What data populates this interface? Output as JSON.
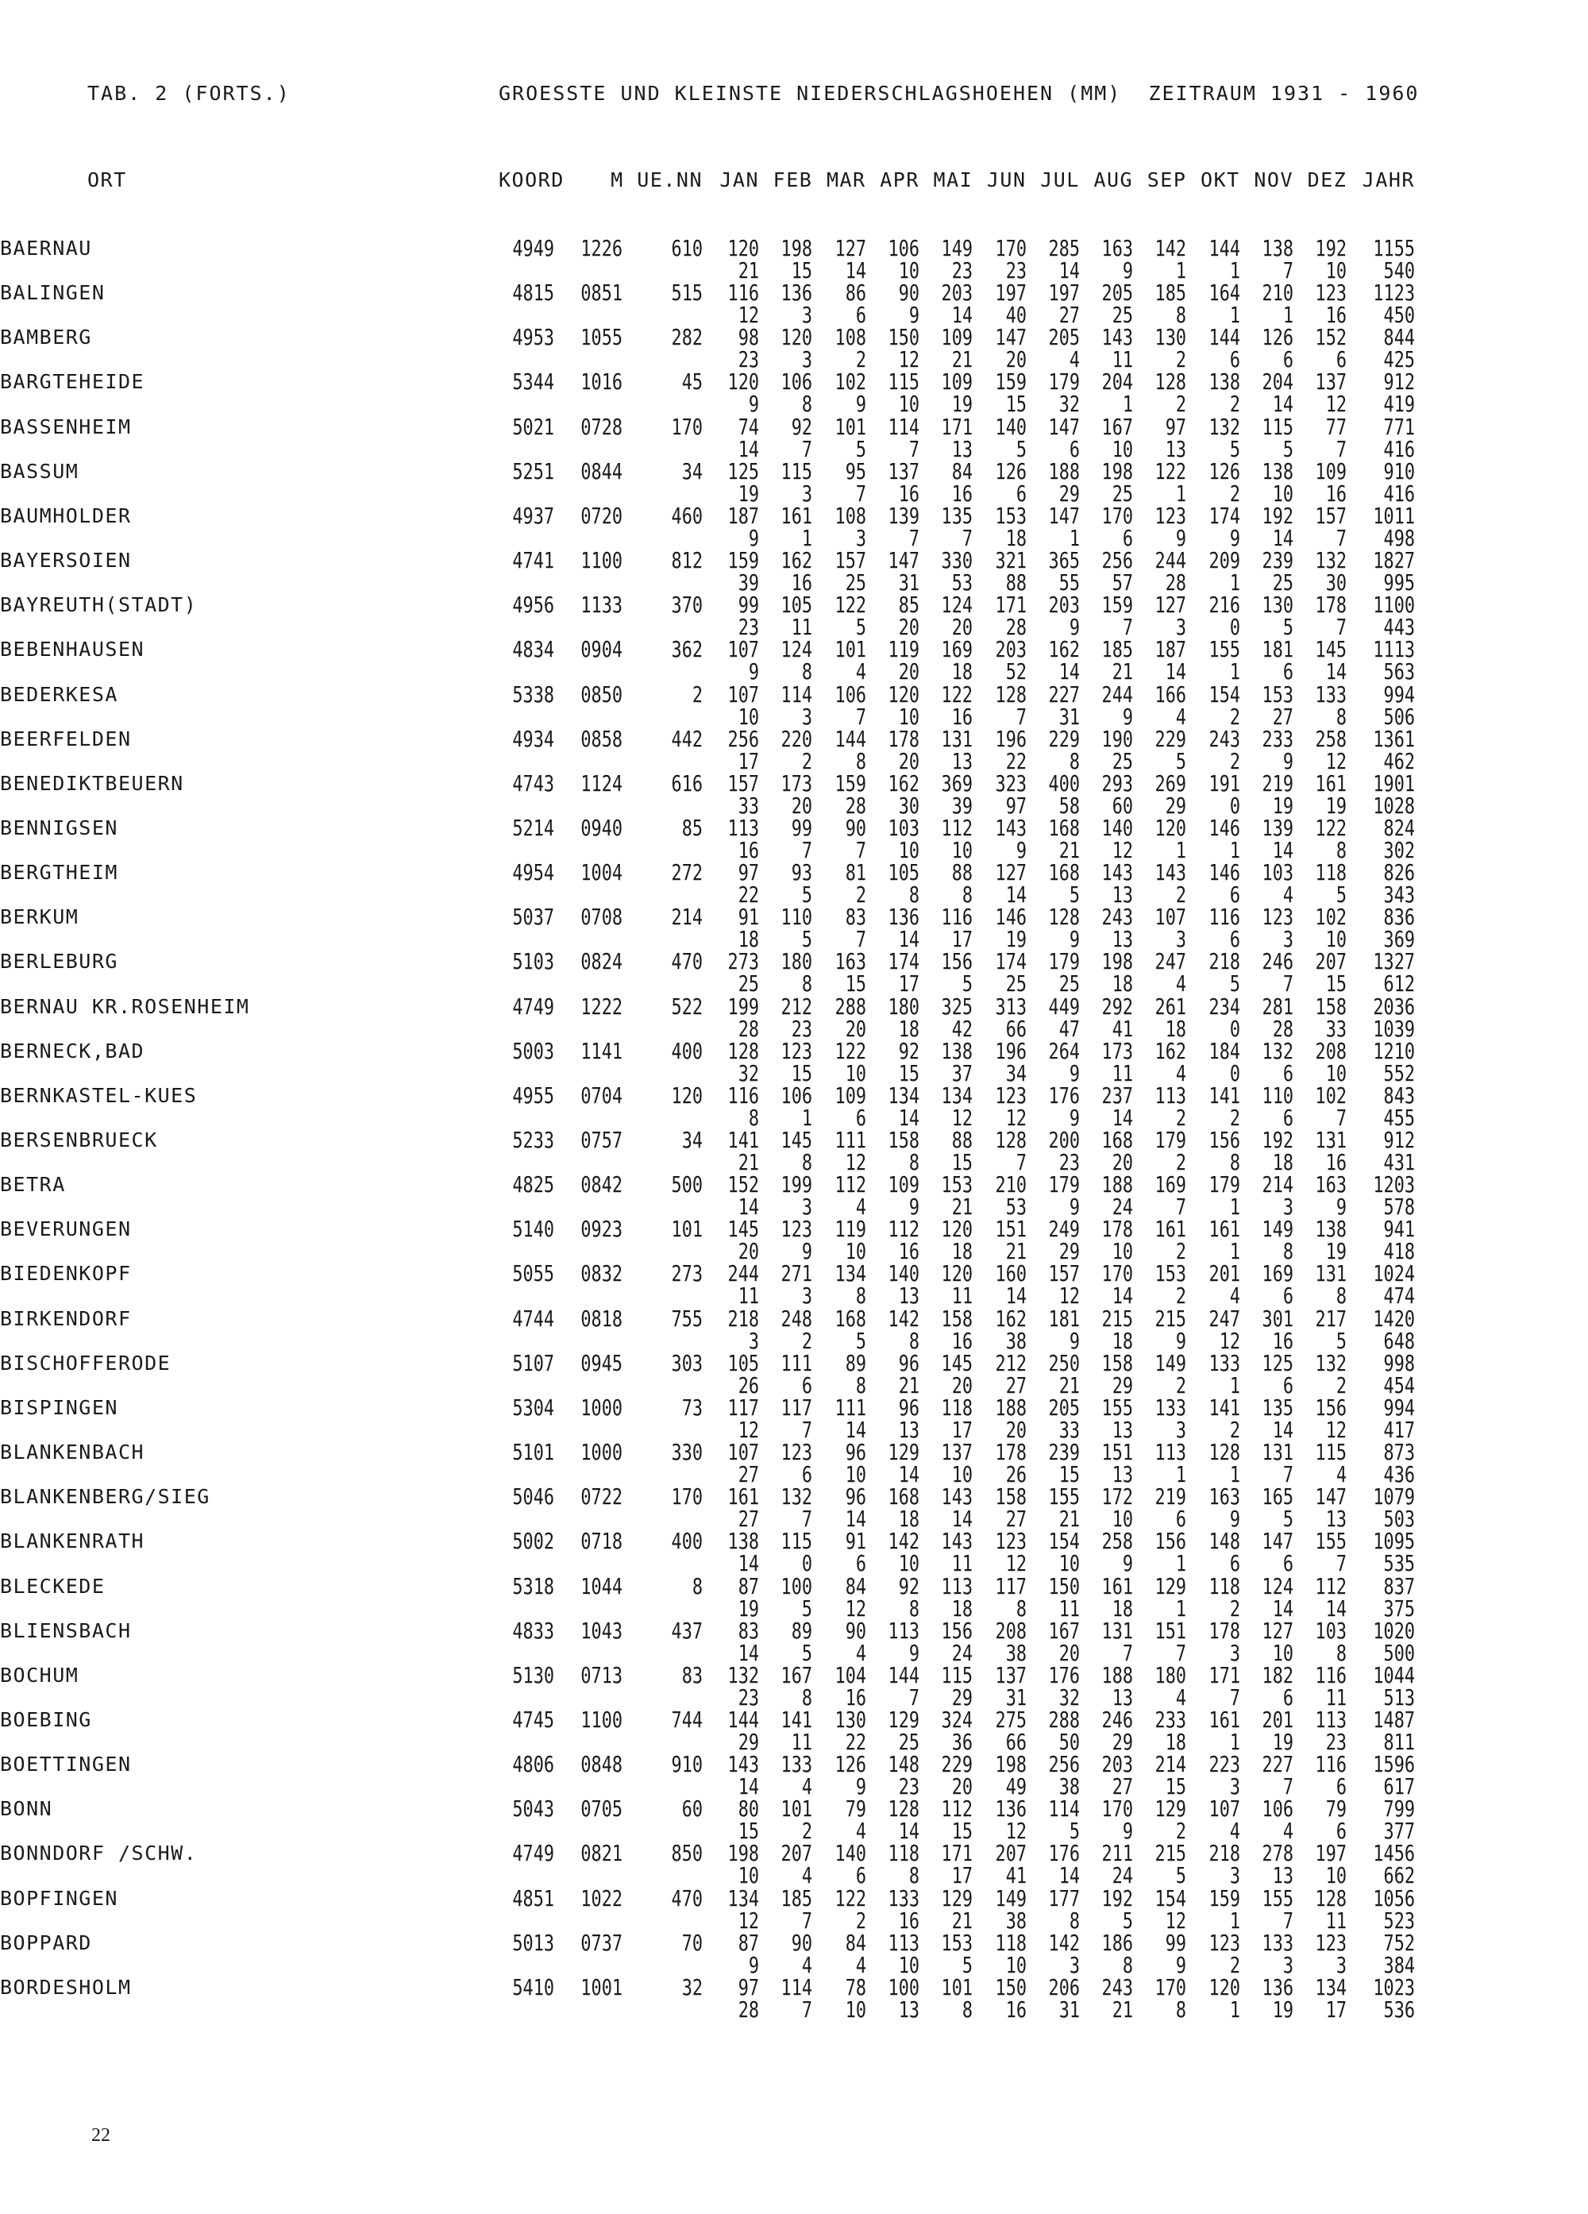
{
  "header": {
    "table_label": "TAB. 2 (FORTS.)",
    "title": "GROESSTE UND KLEINSTE NIEDERSCHLAGSHOEHEN (MM)  ZEITRAUM 1931 - 1960"
  },
  "columns": {
    "ort": "ORT",
    "koord": "KOORD",
    "height": "M UE.NN",
    "months": [
      "JAN",
      "FEB",
      "MAR",
      "APR",
      "MAI",
      "JUN",
      "JUL",
      "AUG",
      "SEP",
      "OKT",
      "NOV",
      "DEZ",
      "JAHR"
    ]
  },
  "stations": [
    {
      "name": "BAERNAU",
      "koord": [
        "4949",
        "1226"
      ],
      "height": "610",
      "max": [
        120,
        198,
        127,
        106,
        149,
        170,
        285,
        163,
        142,
        144,
        138,
        192,
        1155
      ],
      "min": [
        21,
        15,
        14,
        10,
        23,
        23,
        14,
        9,
        1,
        1,
        7,
        10,
        540
      ]
    },
    {
      "name": "BALINGEN",
      "koord": [
        "4815",
        "0851"
      ],
      "height": "515",
      "max": [
        116,
        136,
        86,
        90,
        203,
        197,
        197,
        205,
        185,
        164,
        210,
        123,
        1123
      ],
      "min": [
        12,
        3,
        6,
        9,
        14,
        40,
        27,
        25,
        8,
        1,
        1,
        16,
        450
      ]
    },
    {
      "name": "BAMBERG",
      "koord": [
        "4953",
        "1055"
      ],
      "height": "282",
      "max": [
        98,
        120,
        108,
        150,
        109,
        147,
        205,
        143,
        130,
        144,
        126,
        152,
        844
      ],
      "min": [
        23,
        3,
        2,
        12,
        21,
        20,
        4,
        11,
        2,
        6,
        6,
        6,
        425
      ]
    },
    {
      "name": "BARGTEHEIDE",
      "koord": [
        "5344",
        "1016"
      ],
      "height": "45",
      "max": [
        120,
        106,
        102,
        115,
        109,
        159,
        179,
        204,
        128,
        138,
        204,
        137,
        912
      ],
      "min": [
        9,
        8,
        9,
        10,
        19,
        15,
        32,
        1,
        2,
        2,
        14,
        12,
        419
      ]
    },
    {
      "name": "BASSENHEIM",
      "koord": [
        "5021",
        "0728"
      ],
      "height": "170",
      "max": [
        74,
        92,
        101,
        114,
        171,
        140,
        147,
        167,
        97,
        132,
        115,
        77,
        771
      ],
      "min": [
        14,
        7,
        5,
        7,
        13,
        5,
        6,
        10,
        13,
        5,
        5,
        7,
        416
      ]
    },
    {
      "name": "BASSUM",
      "koord": [
        "5251",
        "0844"
      ],
      "height": "34",
      "max": [
        125,
        115,
        95,
        137,
        84,
        126,
        188,
        198,
        122,
        126,
        138,
        109,
        910
      ],
      "min": [
        19,
        3,
        7,
        16,
        16,
        6,
        29,
        25,
        1,
        2,
        10,
        16,
        416
      ]
    },
    {
      "name": "BAUMHOLDER",
      "koord": [
        "4937",
        "0720"
      ],
      "height": "460",
      "max": [
        187,
        161,
        108,
        139,
        135,
        153,
        147,
        170,
        123,
        174,
        192,
        157,
        1011
      ],
      "min": [
        9,
        1,
        3,
        7,
        7,
        18,
        1,
        6,
        9,
        9,
        14,
        7,
        498
      ]
    },
    {
      "name": "BAYERSOIEN",
      "koord": [
        "4741",
        "1100"
      ],
      "height": "812",
      "max": [
        159,
        162,
        157,
        147,
        330,
        321,
        365,
        256,
        244,
        209,
        239,
        132,
        1827
      ],
      "min": [
        39,
        16,
        25,
        31,
        53,
        88,
        55,
        57,
        28,
        1,
        25,
        30,
        995
      ]
    },
    {
      "name": "BAYREUTH(STADT)",
      "koord": [
        "4956",
        "1133"
      ],
      "height": "370",
      "max": [
        99,
        105,
        122,
        85,
        124,
        171,
        203,
        159,
        127,
        216,
        130,
        178,
        1100
      ],
      "min": [
        23,
        11,
        5,
        20,
        20,
        28,
        9,
        7,
        3,
        0,
        5,
        7,
        443
      ]
    },
    {
      "name": "BEBENHAUSEN",
      "koord": [
        "4834",
        "0904"
      ],
      "height": "362",
      "max": [
        107,
        124,
        101,
        119,
        169,
        203,
        162,
        185,
        187,
        155,
        181,
        145,
        1113
      ],
      "min": [
        9,
        8,
        4,
        20,
        18,
        52,
        14,
        21,
        14,
        1,
        6,
        14,
        563
      ]
    },
    {
      "name": "BEDERKESA",
      "koord": [
        "5338",
        "0850"
      ],
      "height": "2",
      "max": [
        107,
        114,
        106,
        120,
        122,
        128,
        227,
        244,
        166,
        154,
        153,
        133,
        994
      ],
      "min": [
        10,
        3,
        7,
        10,
        16,
        7,
        31,
        9,
        4,
        2,
        27,
        8,
        506
      ]
    },
    {
      "name": "BEERFELDEN",
      "koord": [
        "4934",
        "0858"
      ],
      "height": "442",
      "max": [
        256,
        220,
        144,
        178,
        131,
        196,
        229,
        190,
        229,
        243,
        233,
        258,
        1361
      ],
      "min": [
        17,
        2,
        8,
        20,
        13,
        22,
        8,
        25,
        5,
        2,
        9,
        12,
        462
      ]
    },
    {
      "name": "BENEDIKTBEUERN",
      "koord": [
        "4743",
        "1124"
      ],
      "height": "616",
      "max": [
        157,
        173,
        159,
        162,
        369,
        323,
        400,
        293,
        269,
        191,
        219,
        161,
        1901
      ],
      "min": [
        33,
        20,
        28,
        30,
        39,
        97,
        58,
        60,
        29,
        0,
        19,
        19,
        1028
      ]
    },
    {
      "name": "BENNIGSEN",
      "koord": [
        "5214",
        "0940"
      ],
      "height": "85",
      "max": [
        113,
        99,
        90,
        103,
        112,
        143,
        168,
        140,
        120,
        146,
        139,
        122,
        824
      ],
      "min": [
        16,
        7,
        7,
        10,
        10,
        9,
        21,
        12,
        1,
        1,
        14,
        8,
        302
      ]
    },
    {
      "name": "BERGTHEIM",
      "koord": [
        "4954",
        "1004"
      ],
      "height": "272",
      "max": [
        97,
        93,
        81,
        105,
        88,
        127,
        168,
        143,
        143,
        146,
        103,
        118,
        826
      ],
      "min": [
        22,
        5,
        2,
        8,
        8,
        14,
        5,
        13,
        2,
        6,
        4,
        5,
        343
      ]
    },
    {
      "name": "BERKUM",
      "koord": [
        "5037",
        "0708"
      ],
      "height": "214",
      "max": [
        91,
        110,
        83,
        136,
        116,
        146,
        128,
        243,
        107,
        116,
        123,
        102,
        836
      ],
      "min": [
        18,
        5,
        7,
        14,
        17,
        19,
        9,
        13,
        3,
        6,
        3,
        10,
        369
      ]
    },
    {
      "name": "BERLEBURG",
      "koord": [
        "5103",
        "0824"
      ],
      "height": "470",
      "max": [
        273,
        180,
        163,
        174,
        156,
        174,
        179,
        198,
        247,
        218,
        246,
        207,
        1327
      ],
      "min": [
        25,
        8,
        15,
        17,
        5,
        25,
        25,
        18,
        4,
        5,
        7,
        15,
        612
      ]
    },
    {
      "name": "BERNAU KR.ROSENHEIM",
      "koord": [
        "4749",
        "1222"
      ],
      "height": "522",
      "max": [
        199,
        212,
        288,
        180,
        325,
        313,
        449,
        292,
        261,
        234,
        281,
        158,
        2036
      ],
      "min": [
        28,
        23,
        20,
        18,
        42,
        66,
        47,
        41,
        18,
        0,
        28,
        33,
        1039
      ]
    },
    {
      "name": "BERNECK,BAD",
      "koord": [
        "5003",
        "1141"
      ],
      "height": "400",
      "max": [
        128,
        123,
        122,
        92,
        138,
        196,
        264,
        173,
        162,
        184,
        132,
        208,
        1210
      ],
      "min": [
        32,
        15,
        10,
        15,
        37,
        34,
        9,
        11,
        4,
        0,
        6,
        10,
        552
      ]
    },
    {
      "name": "BERNKASTEL-KUES",
      "koord": [
        "4955",
        "0704"
      ],
      "height": "120",
      "max": [
        116,
        106,
        109,
        134,
        134,
        123,
        176,
        237,
        113,
        141,
        110,
        102,
        843
      ],
      "min": [
        8,
        1,
        6,
        14,
        12,
        12,
        9,
        14,
        2,
        2,
        6,
        7,
        455
      ]
    },
    {
      "name": "BERSENBRUECK",
      "koord": [
        "5233",
        "0757"
      ],
      "height": "34",
      "max": [
        141,
        145,
        111,
        158,
        88,
        128,
        200,
        168,
        179,
        156,
        192,
        131,
        912
      ],
      "min": [
        21,
        8,
        12,
        8,
        15,
        7,
        23,
        20,
        2,
        8,
        18,
        16,
        431
      ]
    },
    {
      "name": "BETRA",
      "koord": [
        "4825",
        "0842"
      ],
      "height": "500",
      "max": [
        152,
        199,
        112,
        109,
        153,
        210,
        179,
        188,
        169,
        179,
        214,
        163,
        1203
      ],
      "min": [
        14,
        3,
        4,
        9,
        21,
        53,
        9,
        24,
        7,
        1,
        3,
        9,
        578
      ]
    },
    {
      "name": "BEVERUNGEN",
      "koord": [
        "5140",
        "0923"
      ],
      "height": "101",
      "max": [
        145,
        123,
        119,
        112,
        120,
        151,
        249,
        178,
        161,
        161,
        149,
        138,
        941
      ],
      "min": [
        20,
        9,
        10,
        16,
        18,
        21,
        29,
        10,
        2,
        1,
        8,
        19,
        418
      ]
    },
    {
      "name": "BIEDENKOPF",
      "koord": [
        "5055",
        "0832"
      ],
      "height": "273",
      "max": [
        244,
        271,
        134,
        140,
        120,
        160,
        157,
        170,
        153,
        201,
        169,
        131,
        1024
      ],
      "min": [
        11,
        3,
        8,
        13,
        11,
        14,
        12,
        14,
        2,
        4,
        6,
        8,
        474
      ]
    },
    {
      "name": "BIRKENDORF",
      "koord": [
        "4744",
        "0818"
      ],
      "height": "755",
      "max": [
        218,
        248,
        168,
        142,
        158,
        162,
        181,
        215,
        215,
        247,
        301,
        217,
        1420
      ],
      "min": [
        3,
        2,
        5,
        8,
        16,
        38,
        9,
        18,
        9,
        12,
        16,
        5,
        648
      ]
    },
    {
      "name": "BISCHOFFERODE",
      "koord": [
        "5107",
        "0945"
      ],
      "height": "303",
      "max": [
        105,
        111,
        89,
        96,
        145,
        212,
        250,
        158,
        149,
        133,
        125,
        132,
        998
      ],
      "min": [
        26,
        6,
        8,
        21,
        20,
        27,
        21,
        29,
        2,
        1,
        6,
        2,
        454
      ]
    },
    {
      "name": "BISPINGEN",
      "koord": [
        "5304",
        "1000"
      ],
      "height": "73",
      "max": [
        117,
        117,
        111,
        96,
        118,
        188,
        205,
        155,
        133,
        141,
        135,
        156,
        994
      ],
      "min": [
        12,
        7,
        14,
        13,
        17,
        20,
        33,
        13,
        3,
        2,
        14,
        12,
        417
      ]
    },
    {
      "name": "BLANKENBACH",
      "koord": [
        "5101",
        "1000"
      ],
      "height": "330",
      "max": [
        107,
        123,
        96,
        129,
        137,
        178,
        239,
        151,
        113,
        128,
        131,
        115,
        873
      ],
      "min": [
        27,
        6,
        10,
        14,
        10,
        26,
        15,
        13,
        1,
        1,
        7,
        4,
        436
      ]
    },
    {
      "name": "BLANKENBERG/SIEG",
      "koord": [
        "5046",
        "0722"
      ],
      "height": "170",
      "max": [
        161,
        132,
        96,
        168,
        143,
        158,
        155,
        172,
        219,
        163,
        165,
        147,
        1079
      ],
      "min": [
        27,
        7,
        14,
        18,
        14,
        27,
        21,
        10,
        6,
        9,
        5,
        13,
        503
      ]
    },
    {
      "name": "BLANKENRATH",
      "koord": [
        "5002",
        "0718"
      ],
      "height": "400",
      "max": [
        138,
        115,
        91,
        142,
        143,
        123,
        154,
        258,
        156,
        148,
        147,
        155,
        1095
      ],
      "min": [
        14,
        0,
        6,
        10,
        11,
        12,
        10,
        9,
        1,
        6,
        6,
        7,
        535
      ]
    },
    {
      "name": "BLECKEDE",
      "koord": [
        "5318",
        "1044"
      ],
      "height": "8",
      "max": [
        87,
        100,
        84,
        92,
        113,
        117,
        150,
        161,
        129,
        118,
        124,
        112,
        837
      ],
      "min": [
        19,
        5,
        12,
        8,
        18,
        8,
        11,
        18,
        1,
        2,
        14,
        14,
        375
      ]
    },
    {
      "name": "BLIENSBACH",
      "koord": [
        "4833",
        "1043"
      ],
      "height": "437",
      "max": [
        83,
        89,
        90,
        113,
        156,
        208,
        167,
        131,
        151,
        178,
        127,
        103,
        1020
      ],
      "min": [
        14,
        5,
        4,
        9,
        24,
        38,
        20,
        7,
        7,
        3,
        10,
        8,
        500
      ]
    },
    {
      "name": "BOCHUM",
      "koord": [
        "5130",
        "0713"
      ],
      "height": "83",
      "max": [
        132,
        167,
        104,
        144,
        115,
        137,
        176,
        188,
        180,
        171,
        182,
        116,
        1044
      ],
      "min": [
        23,
        8,
        16,
        7,
        29,
        31,
        32,
        13,
        4,
        7,
        6,
        11,
        513
      ]
    },
    {
      "name": "BOEBING",
      "koord": [
        "4745",
        "1100"
      ],
      "height": "744",
      "max": [
        144,
        141,
        130,
        129,
        324,
        275,
        288,
        246,
        233,
        161,
        201,
        113,
        1487
      ],
      "min": [
        29,
        11,
        22,
        25,
        36,
        66,
        50,
        29,
        18,
        1,
        19,
        23,
        811
      ]
    },
    {
      "name": "BOETTINGEN",
      "koord": [
        "4806",
        "0848"
      ],
      "height": "910",
      "max": [
        143,
        133,
        126,
        148,
        229,
        198,
        256,
        203,
        214,
        223,
        227,
        116,
        1596
      ],
      "min": [
        14,
        4,
        9,
        23,
        20,
        49,
        38,
        27,
        15,
        3,
        7,
        6,
        617
      ]
    },
    {
      "name": "BONN",
      "koord": [
        "5043",
        "0705"
      ],
      "height": "60",
      "max": [
        80,
        101,
        79,
        128,
        112,
        136,
        114,
        170,
        129,
        107,
        106,
        79,
        799
      ],
      "min": [
        15,
        2,
        4,
        14,
        15,
        12,
        5,
        9,
        2,
        4,
        4,
        6,
        377
      ]
    },
    {
      "name": "BONNDORF /SCHW.",
      "koord": [
        "4749",
        "0821"
      ],
      "height": "850",
      "max": [
        198,
        207,
        140,
        118,
        171,
        207,
        176,
        211,
        215,
        218,
        278,
        197,
        1456
      ],
      "min": [
        10,
        4,
        6,
        8,
        17,
        41,
        14,
        24,
        5,
        3,
        13,
        10,
        662
      ]
    },
    {
      "name": "BOPFINGEN",
      "koord": [
        "4851",
        "1022"
      ],
      "height": "470",
      "max": [
        134,
        185,
        122,
        133,
        129,
        149,
        177,
        192,
        154,
        159,
        155,
        128,
        1056
      ],
      "min": [
        12,
        7,
        2,
        16,
        21,
        38,
        8,
        5,
        12,
        1,
        7,
        11,
        523
      ]
    },
    {
      "name": "BOPPARD",
      "koord": [
        "5013",
        "0737"
      ],
      "height": "70",
      "max": [
        87,
        90,
        84,
        113,
        153,
        118,
        142,
        186,
        99,
        123,
        133,
        123,
        752
      ],
      "min": [
        9,
        4,
        4,
        10,
        5,
        10,
        3,
        8,
        9,
        2,
        3,
        3,
        384
      ]
    },
    {
      "name": "BORDESHOLM",
      "koord": [
        "5410",
        "1001"
      ],
      "height": "32",
      "max": [
        97,
        114,
        78,
        100,
        101,
        150,
        206,
        243,
        170,
        120,
        136,
        134,
        1023
      ],
      "min": [
        28,
        7,
        10,
        13,
        8,
        16,
        31,
        21,
        8,
        1,
        19,
        17,
        536
      ]
    }
  ],
  "footer": {
    "page_number": "22"
  }
}
